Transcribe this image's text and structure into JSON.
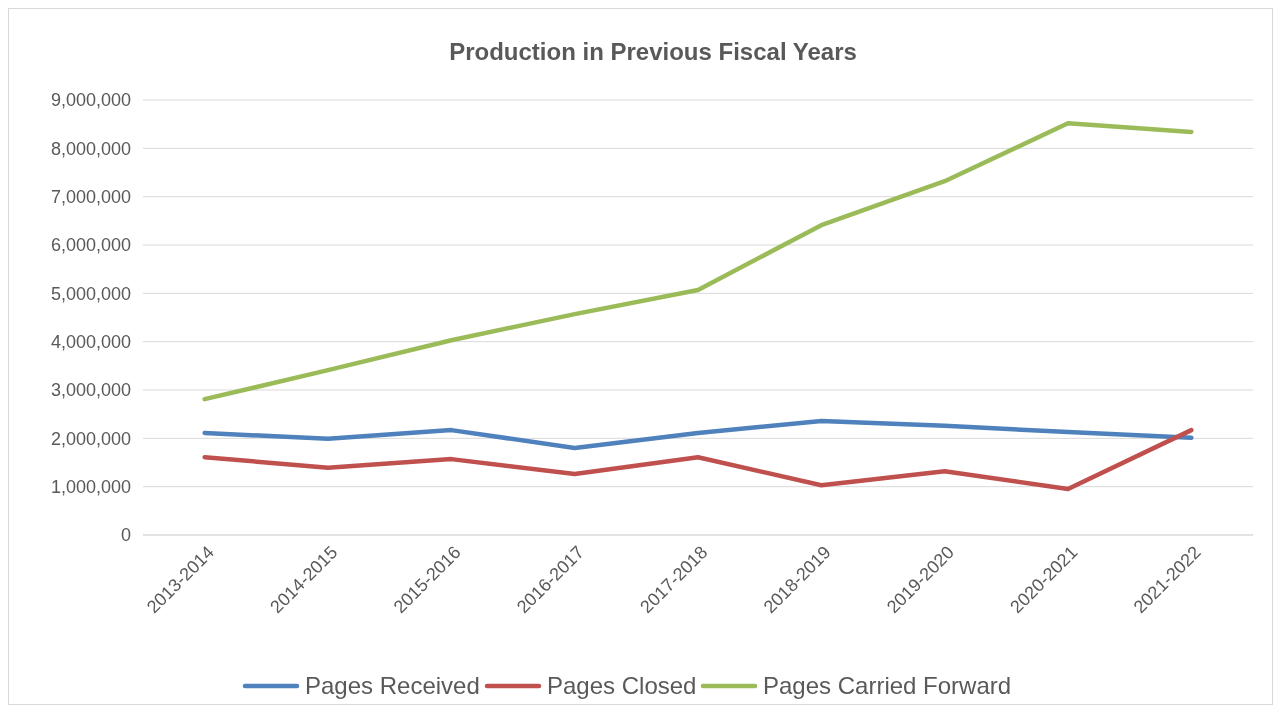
{
  "chart_data": {
    "type": "line",
    "title": "Production in Previous Fiscal Years",
    "categories": [
      "2013-2014",
      "2014-2015",
      "2015-2016",
      "2016-2017",
      "2017-2018",
      "2018-2019",
      "2019-2020",
      "2020-2021",
      "2021-2022"
    ],
    "series": [
      {
        "name": "Pages Received",
        "color": "#4f81bd",
        "values": [
          2110000,
          1990000,
          2170000,
          1800000,
          2110000,
          2360000,
          2260000,
          2130000,
          2010000
        ]
      },
      {
        "name": "Pages Closed",
        "color": "#c0504d",
        "values": [
          1610000,
          1390000,
          1570000,
          1260000,
          1610000,
          1030000,
          1320000,
          950000,
          2170000
        ]
      },
      {
        "name": "Pages Carried Forward",
        "color": "#9bbb59",
        "values": [
          2810000,
          3410000,
          4030000,
          4570000,
          5070000,
          6410000,
          7320000,
          8520000,
          8340000
        ]
      }
    ],
    "ylim": [
      0,
      9000000
    ],
    "yticks": [
      {
        "value": 0,
        "label": "0"
      },
      {
        "value": 1000000,
        "label": "1,000,000"
      },
      {
        "value": 2000000,
        "label": "2,000,000"
      },
      {
        "value": 3000000,
        "label": "3,000,000"
      },
      {
        "value": 4000000,
        "label": "4,000,000"
      },
      {
        "value": 5000000,
        "label": "5,000,000"
      },
      {
        "value": 6000000,
        "label": "6,000,000"
      },
      {
        "value": 7000000,
        "label": "7,000,000"
      },
      {
        "value": 8000000,
        "label": "8,000,000"
      },
      {
        "value": 9000000,
        "label": "9,000,000"
      }
    ],
    "grid": "y",
    "legend": "bottom",
    "marker": "none",
    "line_style": "solid"
  }
}
